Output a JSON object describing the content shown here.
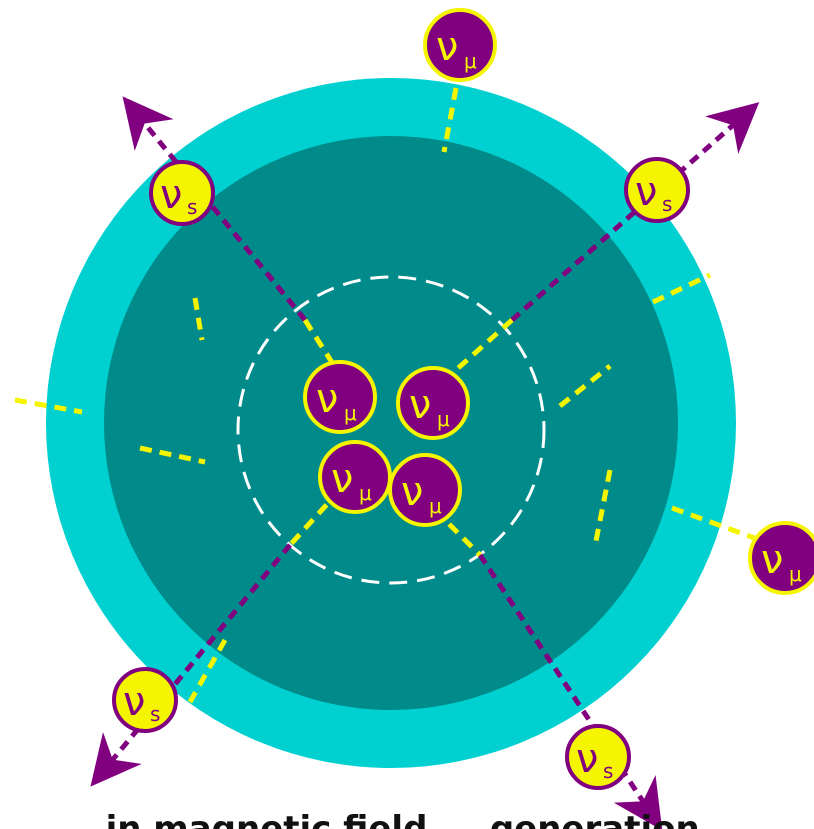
{
  "colors": {
    "outer_shell": "#00d0d0",
    "inner_core": "#008a8a",
    "path_purple": "#800080",
    "path_yellow": "#f5f500",
    "boundary_dashed": "#ffffff"
  },
  "particles": {
    "nu_mu": {
      "symbol": "ν",
      "subscript": "μ",
      "fill": "#800080",
      "stroke": "#f5f500",
      "text": "#f5f500"
    },
    "nu_s": {
      "symbol": "ν",
      "subscript": "s",
      "fill": "#f5f500",
      "stroke": "#800080",
      "text": "#800080"
    }
  },
  "caption": "... in magnetic field ... generation ..."
}
